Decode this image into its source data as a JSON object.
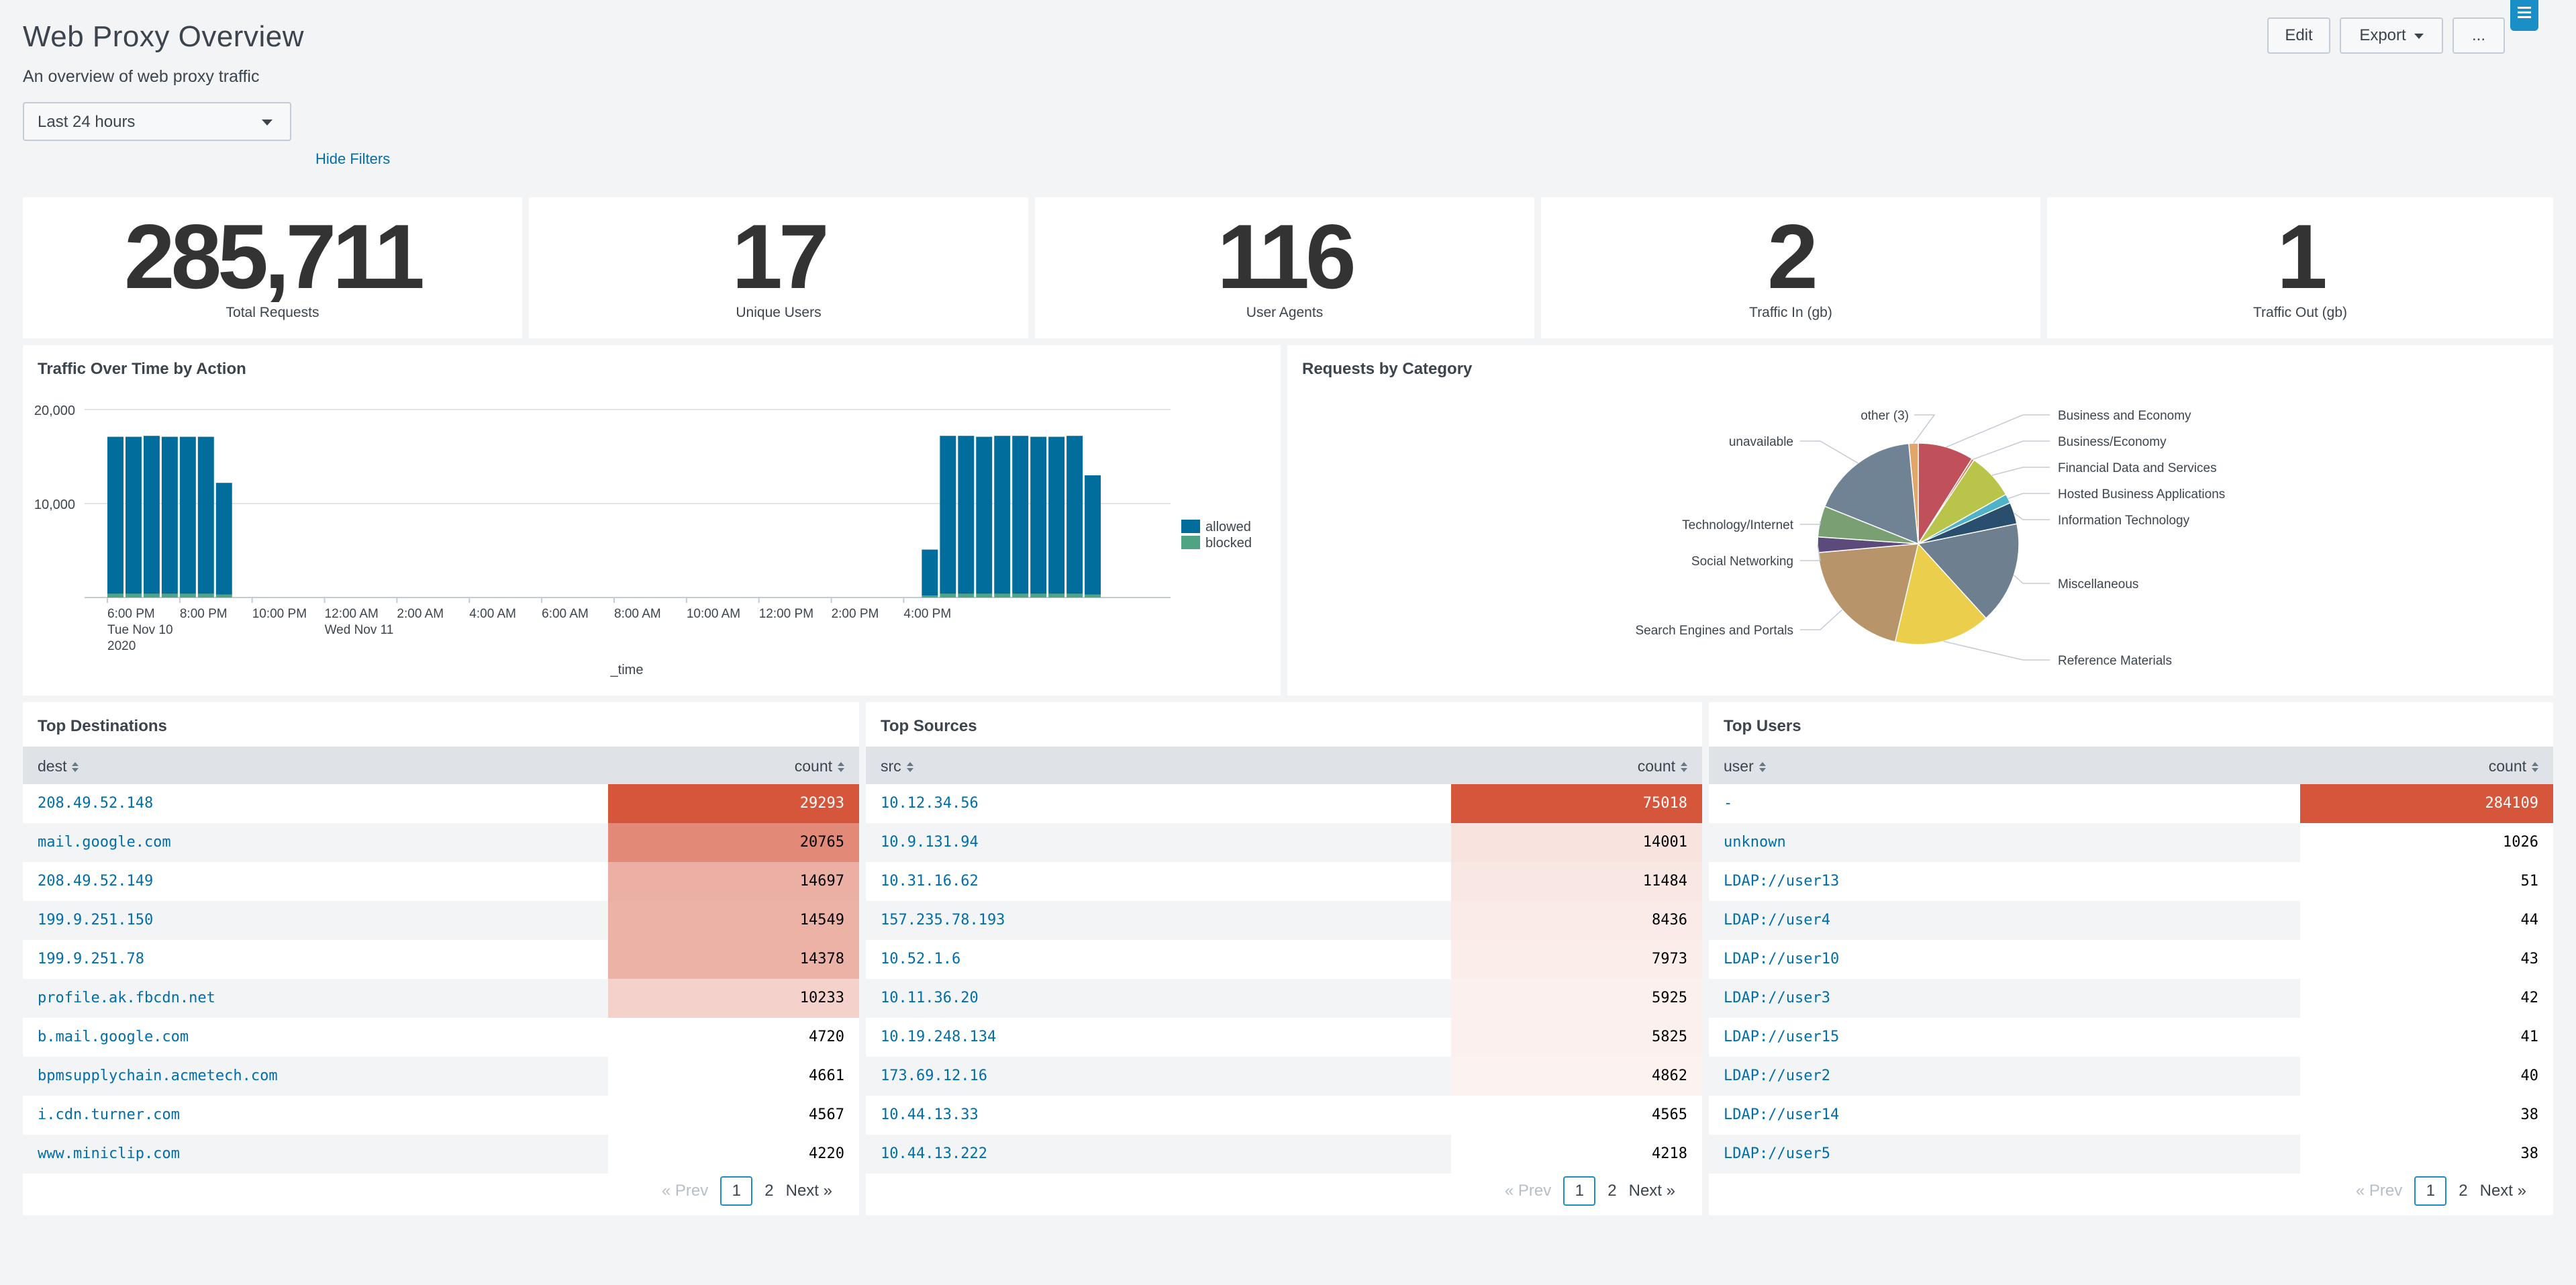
{
  "header": {
    "title": "Web Proxy Overview",
    "subtitle": "An overview of web proxy traffic",
    "time_range": "Last 24 hours",
    "hide_filters": "Hide Filters",
    "edit": "Edit",
    "export": "Export",
    "more": "..."
  },
  "singles": [
    {
      "value": "285,711",
      "label": "Total Requests"
    },
    {
      "value": "17",
      "label": "Unique Users"
    },
    {
      "value": "116",
      "label": "User Agents"
    },
    {
      "value": "2",
      "label": "Traffic In (gb)"
    },
    {
      "value": "1",
      "label": "Traffic Out (gb)"
    }
  ],
  "traffic_panel": {
    "title": "Traffic Over Time by Action"
  },
  "category_panel": {
    "title": "Requests by Category"
  },
  "colors": {
    "allowed": "#006d9c",
    "blocked": "#4fa484",
    "heat_max": "#d6563c"
  },
  "chart_data": [
    {
      "type": "bar",
      "stacked": true,
      "title": "Traffic Over Time by Action",
      "xlabel": "_time",
      "ylabel": "",
      "ylim": [
        0,
        20000
      ],
      "yticks": [
        "20,000",
        "10,000"
      ],
      "xticks": [
        {
          "label": "6:00 PM",
          "sub": "Tue Nov 10",
          "sub2": "2020"
        },
        {
          "label": "8:00 PM"
        },
        {
          "label": "10:00 PM"
        },
        {
          "label": "12:00 AM",
          "sub": "Wed Nov 11"
        },
        {
          "label": "2:00 AM"
        },
        {
          "label": "4:00 AM"
        },
        {
          "label": "6:00 AM"
        },
        {
          "label": "8:00 AM"
        },
        {
          "label": "10:00 AM"
        },
        {
          "label": "12:00 PM"
        },
        {
          "label": "2:00 PM"
        },
        {
          "label": "4:00 PM"
        }
      ],
      "legend_position": "right",
      "series": [
        {
          "name": "allowed",
          "values": [
            16700,
            16700,
            16800,
            16700,
            16700,
            16700,
            11900,
            0,
            0,
            0,
            0,
            0,
            0,
            0,
            0,
            0,
            0,
            0,
            0,
            0,
            0,
            0,
            0,
            0,
            0,
            0,
            0,
            0,
            0,
            0,
            0,
            0,
            0,
            0,
            0,
            0,
            0,
            0,
            0,
            0,
            0,
            0,
            0,
            0,
            0,
            4900,
            16800,
            16800,
            16700,
            16800,
            16800,
            16700,
            16700,
            16800,
            12700,
            0
          ]
        },
        {
          "name": "blocked",
          "values": [
            400,
            400,
            400,
            400,
            400,
            400,
            300,
            0,
            0,
            0,
            0,
            0,
            0,
            0,
            0,
            0,
            0,
            0,
            0,
            0,
            0,
            0,
            0,
            0,
            0,
            0,
            0,
            0,
            0,
            0,
            0,
            0,
            0,
            0,
            0,
            0,
            0,
            0,
            0,
            0,
            0,
            0,
            0,
            0,
            0,
            200,
            400,
            400,
            400,
            400,
            400,
            400,
            400,
            400,
            300,
            0
          ]
        }
      ]
    },
    {
      "type": "pie",
      "title": "Requests by Category",
      "slices": [
        {
          "label": "Business and Economy",
          "value": 9.0,
          "color": "#c0515a"
        },
        {
          "label": "Business/Economy",
          "value": 0.4,
          "color": "#d47b57"
        },
        {
          "label": "Financial Data and Services",
          "value": 7.5,
          "color": "#b8c44a"
        },
        {
          "label": "Hosted Business Applications",
          "value": 1.5,
          "color": "#4eb3c8"
        },
        {
          "label": "Information Technology",
          "value": 3.5,
          "color": "#2a4e6e"
        },
        {
          "label": "Miscellaneous",
          "value": 16.5,
          "color": "#6e7f8f"
        },
        {
          "label": "Reference Materials",
          "value": 15.5,
          "color": "#ecce4d"
        },
        {
          "label": "Search Engines and Portals",
          "value": 20.0,
          "color": "#b8946a"
        },
        {
          "label": "Social Networking",
          "value": 2.5,
          "color": "#5c4a7b"
        },
        {
          "label": "Technology/Internet",
          "value": 5.0,
          "color": "#7a9f72"
        },
        {
          "label": "unavailable",
          "value": 17.5,
          "color": "#708394"
        },
        {
          "label": "other (3)",
          "value": 1.5,
          "color": "#e3a66a"
        }
      ]
    }
  ],
  "tables": [
    {
      "title": "Top Destinations",
      "col1": "dest",
      "col2": "count",
      "rows": [
        {
          "name": "208.49.52.148",
          "count": "29293",
          "level": 1.0
        },
        {
          "name": "mail.google.com",
          "count": "20765",
          "level": 0.68
        },
        {
          "name": "208.49.52.149",
          "count": "14697",
          "level": 0.44
        },
        {
          "name": "199.9.251.150",
          "count": "14549",
          "level": 0.42
        },
        {
          "name": "199.9.251.78",
          "count": "14378",
          "level": 0.42
        },
        {
          "name": "profile.ak.fbcdn.net",
          "count": "10233",
          "level": 0.22
        },
        {
          "name": "b.mail.google.com",
          "count": "4720",
          "level": 0
        },
        {
          "name": "bpmsupplychain.acmetech.com",
          "count": "4661",
          "level": 0
        },
        {
          "name": "i.cdn.turner.com",
          "count": "4567",
          "level": 0
        },
        {
          "name": "www.miniclip.com",
          "count": "4220",
          "level": 0
        }
      ],
      "pager": {
        "prev": "« Prev",
        "current": "1",
        "page2": "2",
        "next": "Next »"
      }
    },
    {
      "title": "Top Sources",
      "col1": "src",
      "col2": "count",
      "rows": [
        {
          "name": "10.12.34.56",
          "count": "75018",
          "level": 1.0
        },
        {
          "name": "10.9.131.94",
          "count": "14001",
          "level": 0.11
        },
        {
          "name": "10.31.16.62",
          "count": "11484",
          "level": 0.09
        },
        {
          "name": "157.235.78.193",
          "count": "8436",
          "level": 0.06
        },
        {
          "name": "10.52.1.6",
          "count": "7973",
          "level": 0.05
        },
        {
          "name": "10.11.36.20",
          "count": "5925",
          "level": 0.03
        },
        {
          "name": "10.19.248.134",
          "count": "5825",
          "level": 0.03
        },
        {
          "name": "173.69.12.16",
          "count": "4862",
          "level": 0.02
        },
        {
          "name": "10.44.13.33",
          "count": "4565",
          "level": 0
        },
        {
          "name": "10.44.13.222",
          "count": "4218",
          "level": 0
        }
      ],
      "pager": {
        "prev": "« Prev",
        "current": "1",
        "page2": "2",
        "next": "Next »"
      }
    },
    {
      "title": "Top Users",
      "col1": "user",
      "col2": "count",
      "rows": [
        {
          "name": "-",
          "count": "284109",
          "level": 1.0
        },
        {
          "name": "unknown",
          "count": "1026",
          "level": 0
        },
        {
          "name": "LDAP://user13",
          "count": "51",
          "level": 0
        },
        {
          "name": "LDAP://user4",
          "count": "44",
          "level": 0
        },
        {
          "name": "LDAP://user10",
          "count": "43",
          "level": 0
        },
        {
          "name": "LDAP://user3",
          "count": "42",
          "level": 0
        },
        {
          "name": "LDAP://user15",
          "count": "41",
          "level": 0
        },
        {
          "name": "LDAP://user2",
          "count": "40",
          "level": 0
        },
        {
          "name": "LDAP://user14",
          "count": "38",
          "level": 0
        },
        {
          "name": "LDAP://user5",
          "count": "38",
          "level": 0
        }
      ],
      "pager": {
        "prev": "« Prev",
        "current": "1",
        "page2": "2",
        "next": "Next »"
      }
    }
  ]
}
